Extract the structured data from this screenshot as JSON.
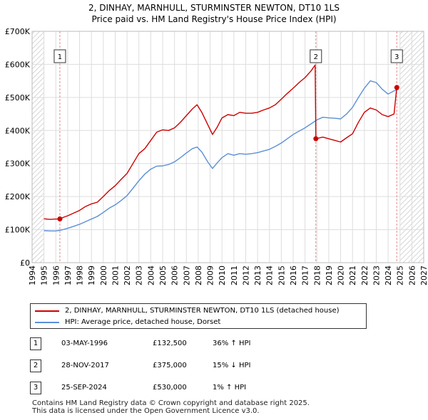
{
  "chart_data": {
    "type": "line",
    "title": "2, DINHAY, MARNHULL, STURMINSTER NEWTON, DT10 1LS",
    "subtitle": "Price paid vs. HM Land Registry's House Price Index (HPI)",
    "xlim": [
      1994,
      2027
    ],
    "ylim": [
      0,
      700000
    ],
    "x_ticks": [
      "1994",
      "1995",
      "1996",
      "1997",
      "1998",
      "1999",
      "2000",
      "2001",
      "2002",
      "2003",
      "2004",
      "2005",
      "2006",
      "2007",
      "2008",
      "2009",
      "2010",
      "2011",
      "2012",
      "2013",
      "2014",
      "2015",
      "2016",
      "2017",
      "2018",
      "2019",
      "2020",
      "2021",
      "2022",
      "2023",
      "2024",
      "2025",
      "2026",
      "2027"
    ],
    "y_ticks": [
      {
        "value": 0,
        "label": "£0"
      },
      {
        "value": 100000,
        "label": "£100K"
      },
      {
        "value": 200000,
        "label": "£200K"
      },
      {
        "value": 300000,
        "label": "£300K"
      },
      {
        "value": 400000,
        "label": "£400K"
      },
      {
        "value": 500000,
        "label": "£500K"
      },
      {
        "value": 600000,
        "label": "£600K"
      },
      {
        "value": 700000,
        "label": "£700K"
      }
    ],
    "grid": true,
    "series": [
      {
        "name": "2, DINHAY, MARNHULL, STURMINSTER NEWTON, DT10 1LS (detached house)",
        "color": "#cc0000",
        "points": [
          [
            1995.0,
            133000
          ],
          [
            1995.5,
            131000
          ],
          [
            1996.0,
            132000
          ],
          [
            1996.34,
            132500
          ],
          [
            1996.7,
            138000
          ],
          [
            1997.0,
            142000
          ],
          [
            1997.5,
            150000
          ],
          [
            1998.0,
            158000
          ],
          [
            1998.5,
            170000
          ],
          [
            1999.0,
            178000
          ],
          [
            1999.5,
            183000
          ],
          [
            2000.0,
            200000
          ],
          [
            2000.5,
            218000
          ],
          [
            2001.0,
            233000
          ],
          [
            2001.5,
            252000
          ],
          [
            2002.0,
            270000
          ],
          [
            2002.5,
            300000
          ],
          [
            2003.0,
            330000
          ],
          [
            2003.5,
            345000
          ],
          [
            2004.0,
            370000
          ],
          [
            2004.5,
            395000
          ],
          [
            2005.0,
            402000
          ],
          [
            2005.5,
            400000
          ],
          [
            2006.0,
            408000
          ],
          [
            2006.5,
            425000
          ],
          [
            2007.0,
            445000
          ],
          [
            2007.5,
            465000
          ],
          [
            2007.9,
            478000
          ],
          [
            2008.3,
            455000
          ],
          [
            2008.8,
            418000
          ],
          [
            2009.2,
            388000
          ],
          [
            2009.6,
            410000
          ],
          [
            2010.0,
            438000
          ],
          [
            2010.5,
            448000
          ],
          [
            2011.0,
            445000
          ],
          [
            2011.5,
            455000
          ],
          [
            2012.0,
            452000
          ],
          [
            2012.5,
            452000
          ],
          [
            2013.0,
            455000
          ],
          [
            2013.5,
            462000
          ],
          [
            2014.0,
            468000
          ],
          [
            2014.5,
            478000
          ],
          [
            2015.0,
            495000
          ],
          [
            2015.5,
            512000
          ],
          [
            2016.0,
            528000
          ],
          [
            2016.5,
            545000
          ],
          [
            2017.0,
            560000
          ],
          [
            2017.5,
            580000
          ],
          [
            2017.85,
            598000
          ],
          [
            2017.91,
            375000
          ],
          [
            2018.5,
            380000
          ],
          [
            2019.0,
            375000
          ],
          [
            2019.5,
            370000
          ],
          [
            2020.0,
            365000
          ],
          [
            2020.5,
            378000
          ],
          [
            2021.0,
            390000
          ],
          [
            2021.5,
            425000
          ],
          [
            2022.0,
            455000
          ],
          [
            2022.5,
            468000
          ],
          [
            2023.0,
            462000
          ],
          [
            2023.5,
            448000
          ],
          [
            2024.0,
            442000
          ],
          [
            2024.5,
            450000
          ],
          [
            2024.73,
            530000
          ],
          [
            2024.9,
            535000
          ]
        ]
      },
      {
        "name": "HPI: Average price, detached house, Dorset",
        "color": "#5b8fd6",
        "points": [
          [
            1995.0,
            97000
          ],
          [
            1995.5,
            96000
          ],
          [
            1996.0,
            96000
          ],
          [
            1996.5,
            99000
          ],
          [
            1997.0,
            104000
          ],
          [
            1997.5,
            110000
          ],
          [
            1998.0,
            116000
          ],
          [
            1998.5,
            124000
          ],
          [
            1999.0,
            132000
          ],
          [
            1999.5,
            140000
          ],
          [
            2000.0,
            152000
          ],
          [
            2000.5,
            165000
          ],
          [
            2001.0,
            175000
          ],
          [
            2001.5,
            188000
          ],
          [
            2002.0,
            203000
          ],
          [
            2002.5,
            225000
          ],
          [
            2003.0,
            248000
          ],
          [
            2003.5,
            268000
          ],
          [
            2004.0,
            283000
          ],
          [
            2004.5,
            292000
          ],
          [
            2005.0,
            293000
          ],
          [
            2005.5,
            297000
          ],
          [
            2006.0,
            305000
          ],
          [
            2006.5,
            318000
          ],
          [
            2007.0,
            332000
          ],
          [
            2007.5,
            345000
          ],
          [
            2007.9,
            350000
          ],
          [
            2008.3,
            335000
          ],
          [
            2008.8,
            305000
          ],
          [
            2009.2,
            285000
          ],
          [
            2009.6,
            302000
          ],
          [
            2010.0,
            318000
          ],
          [
            2010.5,
            330000
          ],
          [
            2011.0,
            325000
          ],
          [
            2011.5,
            330000
          ],
          [
            2012.0,
            328000
          ],
          [
            2012.5,
            330000
          ],
          [
            2013.0,
            333000
          ],
          [
            2013.5,
            338000
          ],
          [
            2014.0,
            343000
          ],
          [
            2014.5,
            352000
          ],
          [
            2015.0,
            362000
          ],
          [
            2015.5,
            375000
          ],
          [
            2016.0,
            388000
          ],
          [
            2016.5,
            398000
          ],
          [
            2017.0,
            408000
          ],
          [
            2017.5,
            420000
          ],
          [
            2018.0,
            432000
          ],
          [
            2018.5,
            440000
          ],
          [
            2019.0,
            438000
          ],
          [
            2019.5,
            437000
          ],
          [
            2020.0,
            435000
          ],
          [
            2020.5,
            450000
          ],
          [
            2021.0,
            470000
          ],
          [
            2021.5,
            500000
          ],
          [
            2022.0,
            528000
          ],
          [
            2022.5,
            550000
          ],
          [
            2023.0,
            545000
          ],
          [
            2023.5,
            525000
          ],
          [
            2024.0,
            510000
          ],
          [
            2024.5,
            520000
          ],
          [
            2024.9,
            525000
          ]
        ]
      }
    ],
    "sales": [
      {
        "num": "1",
        "x": 1996.34,
        "price": 132500
      },
      {
        "num": "2",
        "x": 2017.91,
        "price": 375000
      },
      {
        "num": "3",
        "x": 2024.73,
        "price": 530000
      }
    ],
    "future_from": 2025.0
  },
  "legend": {
    "property": "2, DINHAY, MARNHULL, STURMINSTER NEWTON, DT10 1LS (detached house)",
    "hpi": "HPI: Average price, detached house, Dorset"
  },
  "transactions": [
    {
      "num": "1",
      "date": "03-MAY-1996",
      "price": "£132,500",
      "hpi": "36% ↑ HPI"
    },
    {
      "num": "2",
      "date": "28-NOV-2017",
      "price": "£375,000",
      "hpi": "15% ↓ HPI"
    },
    {
      "num": "3",
      "date": "25-SEP-2024",
      "price": "£530,000",
      "hpi": "1% ↑ HPI"
    }
  ],
  "footer": {
    "line1": "Contains HM Land Registry data © Crown copyright and database right 2025.",
    "line2": "This data is licensed under the Open Government Licence v3.0."
  },
  "colors": {
    "property": "#cc0000",
    "hpi": "#5b8fd6",
    "marker": "#cc0000",
    "grid": "#dddddd",
    "marker_line": "#e88888"
  }
}
